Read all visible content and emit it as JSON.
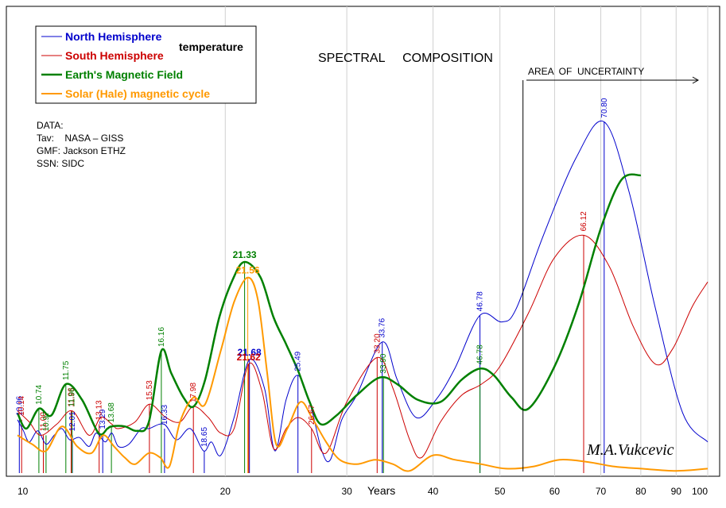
{
  "chart_data": {
    "type": "line",
    "title": "SPECTRAL     COMPOSITION",
    "xlabel": "Years",
    "x_scale": "log",
    "xlim": [
      10,
      100
    ],
    "x_ticks": [
      10,
      20,
      30,
      40,
      50,
      60,
      70,
      80,
      90,
      100
    ],
    "y_axis": "unlabeled",
    "grid": "vertical",
    "legend_placement": "top-left",
    "uncertainty_label": "AREA  OF  UNCERTAINTY",
    "uncertainty_from": 54,
    "data_note": {
      "heading": "DATA:",
      "lines": [
        "Tav:    NASA – GISS",
        "GMF: Jackson ETHZ",
        "SSN: SIDC"
      ]
    },
    "temperature_label": "temperature",
    "signature": "M.A.Vukcevic",
    "series": [
      {
        "name": "North Hemisphere",
        "color": "#0000cc",
        "points": [
          [
            10,
            0.24
          ],
          [
            10.2,
            0.19
          ],
          [
            10.4,
            0.14
          ],
          [
            10.7,
            0.19
          ],
          [
            11,
            0.13
          ],
          [
            11.3,
            0.17
          ],
          [
            11.6,
            0.2
          ],
          [
            11.9,
            0.15
          ],
          [
            12.3,
            0.16
          ],
          [
            12.7,
            0.12
          ],
          [
            13,
            0.18
          ],
          [
            13.4,
            0.14
          ],
          [
            13.7,
            0.18
          ],
          [
            14,
            0.12
          ],
          [
            14.5,
            0.13
          ],
          [
            15.1,
            0.2
          ],
          [
            15.5,
            0.2
          ],
          [
            16.3,
            0.22
          ],
          [
            17,
            0.15
          ],
          [
            17.8,
            0.2
          ],
          [
            18.6,
            0.1
          ],
          [
            19.1,
            0.14
          ],
          [
            19.7,
            0.08
          ],
          [
            20.6,
            0.25
          ],
          [
            21.68,
            0.51
          ],
          [
            22.8,
            0.38
          ],
          [
            23.6,
            0.1
          ],
          [
            24.5,
            0.33
          ],
          [
            25.49,
            0.44
          ],
          [
            26.6,
            0.3
          ],
          [
            27.6,
            0.1
          ],
          [
            28.4,
            0.06
          ],
          [
            29.5,
            0.24
          ],
          [
            31,
            0.35
          ],
          [
            33.76,
            0.59
          ],
          [
            35.5,
            0.42
          ],
          [
            37.8,
            0.25
          ],
          [
            40.4,
            0.33
          ],
          [
            43,
            0.47
          ],
          [
            46.78,
            0.71
          ],
          [
            50.3,
            0.68
          ],
          [
            52.8,
            0.74
          ],
          [
            57.8,
            1.07
          ],
          [
            64.5,
            1.42
          ],
          [
            70.8,
            1.58
          ],
          [
            77,
            1.26
          ],
          [
            84,
            0.74
          ],
          [
            92,
            0.27
          ],
          [
            100,
            0.14
          ]
        ]
      },
      {
        "name": "South Hemisphere",
        "color": "#cc0000",
        "points": [
          [
            10,
            0.28
          ],
          [
            10.4,
            0.23
          ],
          [
            10.8,
            0.17
          ],
          [
            11.4,
            0.22
          ],
          [
            12,
            0.28
          ],
          [
            12.7,
            0.17
          ],
          [
            13.2,
            0.25
          ],
          [
            13.7,
            0.22
          ],
          [
            14,
            0.2
          ],
          [
            14.8,
            0.23
          ],
          [
            15.53,
            0.31
          ],
          [
            16.4,
            0.25
          ],
          [
            17.2,
            0.23
          ],
          [
            17.98,
            0.3
          ],
          [
            18.9,
            0.25
          ],
          [
            19.7,
            0.18
          ],
          [
            20.6,
            0.2
          ],
          [
            21.62,
            0.49
          ],
          [
            22.6,
            0.37
          ],
          [
            23.5,
            0.11
          ],
          [
            24.5,
            0.2
          ],
          [
            25.5,
            0.25
          ],
          [
            26.67,
            0.2
          ],
          [
            28,
            0.09
          ],
          [
            30,
            0.32
          ],
          [
            33.2,
            0.52
          ],
          [
            35,
            0.38
          ],
          [
            37,
            0.15
          ],
          [
            38.5,
            0.07
          ],
          [
            41,
            0.23
          ],
          [
            44,
            0.35
          ],
          [
            47,
            0.4
          ],
          [
            50,
            0.48
          ],
          [
            55,
            0.72
          ],
          [
            60,
            0.97
          ],
          [
            66.12,
            1.07
          ],
          [
            72,
            0.93
          ],
          [
            78,
            0.66
          ],
          [
            84,
            0.49
          ],
          [
            89,
            0.56
          ],
          [
            95,
            0.75
          ],
          [
            100,
            0.86
          ]
        ]
      },
      {
        "name": "Earth's Magnetic Field",
        "color": "#008000",
        "points": [
          [
            10,
            0.27
          ],
          [
            10.3,
            0.2
          ],
          [
            10.74,
            0.29
          ],
          [
            11.2,
            0.26
          ],
          [
            11.75,
            0.4
          ],
          [
            12.4,
            0.33
          ],
          [
            13.1,
            0.18
          ],
          [
            13.5,
            0.2
          ],
          [
            13.68,
            0.21
          ],
          [
            14.3,
            0.21
          ],
          [
            14.9,
            0.19
          ],
          [
            15.5,
            0.23
          ],
          [
            16.16,
            0.55
          ],
          [
            16.7,
            0.45
          ],
          [
            17.4,
            0.34
          ],
          [
            18,
            0.3
          ],
          [
            18.7,
            0.42
          ],
          [
            19.6,
            0.7
          ],
          [
            20.5,
            0.87
          ],
          [
            21.33,
            0.95
          ],
          [
            22.5,
            0.88
          ],
          [
            23.5,
            0.7
          ],
          [
            24.5,
            0.58
          ],
          [
            25.5,
            0.46
          ],
          [
            26.5,
            0.32
          ],
          [
            27.5,
            0.22
          ],
          [
            29,
            0.26
          ],
          [
            31,
            0.35
          ],
          [
            33.5,
            0.43
          ],
          [
            35.5,
            0.4
          ],
          [
            38,
            0.33
          ],
          [
            41,
            0.32
          ],
          [
            44,
            0.42
          ],
          [
            46.78,
            0.47
          ],
          [
            49,
            0.44
          ],
          [
            52,
            0.34
          ],
          [
            55,
            0.29
          ],
          [
            60,
            0.48
          ],
          [
            65,
            0.76
          ],
          [
            70,
            1.1
          ],
          [
            75,
            1.32
          ],
          [
            80,
            1.34
          ]
        ]
      },
      {
        "name": "Solar (Hale) magnetic cycle",
        "color": "#ff9900",
        "points": [
          [
            10,
            0.17
          ],
          [
            10.5,
            0.13
          ],
          [
            11,
            0.1
          ],
          [
            11.6,
            0.21
          ],
          [
            12.2,
            0.12
          ],
          [
            12.8,
            0.09
          ],
          [
            13.3,
            0.17
          ],
          [
            13.8,
            0.12
          ],
          [
            14.3,
            0.07
          ],
          [
            14.8,
            0.04
          ],
          [
            15.5,
            0.09
          ],
          [
            16.1,
            0.07
          ],
          [
            16.6,
            0.03
          ],
          [
            17.2,
            0.23
          ],
          [
            17.98,
            0.34
          ],
          [
            18.7,
            0.31
          ],
          [
            19.7,
            0.55
          ],
          [
            20.6,
            0.77
          ],
          [
            21.56,
            0.88
          ],
          [
            22.3,
            0.78
          ],
          [
            23,
            0.45
          ],
          [
            23.7,
            0.13
          ],
          [
            24.6,
            0.2
          ],
          [
            25.7,
            0.32
          ],
          [
            26.7,
            0.25
          ],
          [
            28,
            0.14
          ],
          [
            29.3,
            0.06
          ],
          [
            31,
            0.04
          ],
          [
            33,
            0.06
          ],
          [
            35,
            0.04
          ],
          [
            37,
            0.01
          ],
          [
            40,
            0.08
          ],
          [
            43,
            0.06
          ],
          [
            47,
            0.04
          ],
          [
            51,
            0.02
          ],
          [
            56,
            0.03
          ],
          [
            61,
            0.06
          ],
          [
            67,
            0.05
          ],
          [
            73,
            0.03
          ],
          [
            80,
            0.02
          ],
          [
            90,
            0.01
          ],
          [
            100,
            0.02
          ]
        ]
      }
    ],
    "peaks": [
      {
        "series": 0,
        "x": 10.06,
        "label": "10.06",
        "y": 0.24
      },
      {
        "series": 0,
        "x": 12.01,
        "label": "12.01",
        "y": 0.17
      },
      {
        "series": 0,
        "x": 13.29,
        "label": "13.29",
        "y": 0.18
      },
      {
        "series": 0,
        "x": 16.33,
        "label": "16.33",
        "y": 0.2
      },
      {
        "series": 0,
        "x": 18.65,
        "label": "18.65",
        "y": 0.1
      },
      {
        "series": 0,
        "x": 21.68,
        "label": "21.68",
        "y": 0.51,
        "bold": true
      },
      {
        "series": 0,
        "x": 25.49,
        "label": "25.49",
        "y": 0.44
      },
      {
        "series": 0,
        "x": 33.76,
        "label": "33.76",
        "y": 0.59
      },
      {
        "series": 0,
        "x": 46.78,
        "label": "46.78",
        "y": 0.71
      },
      {
        "series": 0,
        "x": 70.8,
        "label": "70.80",
        "y": 1.58
      },
      {
        "series": 1,
        "x": 10.14,
        "label": "10.14",
        "y": 0.24
      },
      {
        "series": 1,
        "x": 10.9,
        "label": "11.00",
        "y": 0.17
      },
      {
        "series": 1,
        "x": 11.96,
        "label": "11.96",
        "y": 0.28
      },
      {
        "series": 1,
        "x": 13.13,
        "label": "13.13",
        "y": 0.22
      },
      {
        "series": 1,
        "x": 15.53,
        "label": "15.53",
        "y": 0.31
      },
      {
        "series": 1,
        "x": 17.98,
        "label": "17.98",
        "y": 0.3
      },
      {
        "series": 1,
        "x": 21.62,
        "label": "21.62",
        "y": 0.49,
        "bold": true
      },
      {
        "series": 1,
        "x": 26.67,
        "label": "26.67",
        "y": 0.2
      },
      {
        "series": 1,
        "x": 33.2,
        "label": "33.20",
        "y": 0.52
      },
      {
        "series": 1,
        "x": 66.12,
        "label": "66.12",
        "y": 1.07
      },
      {
        "series": 2,
        "x": 10.74,
        "label": "10.74",
        "y": 0.29
      },
      {
        "series": 2,
        "x": 11.0,
        "label": "10.97",
        "y": 0.17
      },
      {
        "series": 2,
        "x": 11.75,
        "label": "11.75",
        "y": 0.4
      },
      {
        "series": 2,
        "x": 12.0,
        "label": "11.96",
        "y": 0.28
      },
      {
        "series": 2,
        "x": 13.68,
        "label": "13.68",
        "y": 0.21
      },
      {
        "series": 2,
        "x": 16.16,
        "label": "16.16",
        "y": 0.55
      },
      {
        "series": 2,
        "x": 21.33,
        "label": "21.33",
        "y": 0.95,
        "bold": true
      },
      {
        "series": 2,
        "x": 33.9,
        "label": "33.90",
        "y": 0.43
      },
      {
        "series": 2,
        "x": 46.78,
        "label": "46.78",
        "y": 0.47
      },
      {
        "series": 3,
        "x": 21.56,
        "label": "21.56",
        "y": 0.88,
        "bold": true
      }
    ]
  }
}
